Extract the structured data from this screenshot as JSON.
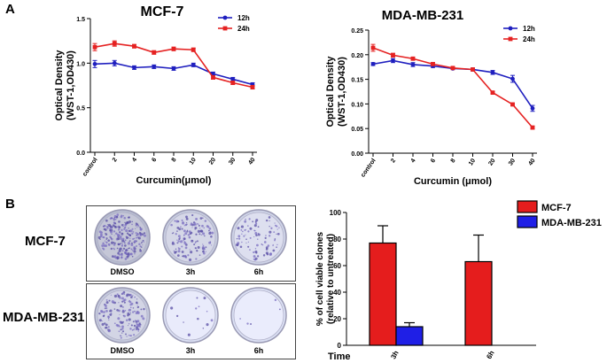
{
  "panels": {
    "a_label": "A",
    "b_label": "B"
  },
  "chart_data": [
    {
      "type": "line",
      "title": "MCF-7",
      "xlabel": "Curcumin(μmol)",
      "ylabel": [
        "Optical Density",
        "(WST-1,OD430)"
      ],
      "categories": [
        "control",
        "2",
        "4",
        "6",
        "8",
        "10",
        "20",
        "30",
        "40"
      ],
      "ylim": [
        0,
        1.5
      ],
      "yticks": [
        "0.0",
        "0.5",
        "1.0",
        "1.5"
      ],
      "ytick_values": [
        0,
        0.5,
        1.0,
        1.5
      ],
      "legend_position": "top-right",
      "series": [
        {
          "name": "12h",
          "color": "#1f1fbf",
          "values": [
            0.99,
            1.0,
            0.95,
            0.96,
            0.94,
            0.98,
            0.88,
            0.82,
            0.76
          ],
          "errors": [
            0.04,
            0.03,
            0.02,
            0.02,
            0.02,
            0.02,
            0.02,
            0.02,
            0.02
          ]
        },
        {
          "name": "24h",
          "color": "#e52222",
          "values": [
            1.18,
            1.22,
            1.19,
            1.12,
            1.16,
            1.15,
            0.84,
            0.78,
            0.73
          ],
          "errors": [
            0.04,
            0.03,
            0.02,
            0.02,
            0.02,
            0.02,
            0.02,
            0.02,
            0.02
          ]
        }
      ]
    },
    {
      "type": "line",
      "title": "MDA-MB-231",
      "xlabel": "Curcumin (μmol)",
      "ylabel": [
        "Optical Density",
        "(WST-1,OD430)"
      ],
      "categories": [
        "control",
        "2",
        "4",
        "6",
        "8",
        "10",
        "20",
        "30",
        "40"
      ],
      "ylim": [
        0,
        0.25
      ],
      "yticks": [
        "0.00",
        "0.05",
        "0.10",
        "0.15",
        "0.20",
        "0.25"
      ],
      "ytick_values": [
        0,
        0.05,
        0.1,
        0.15,
        0.2,
        0.25
      ],
      "legend_position": "top-right",
      "series": [
        {
          "name": "12h",
          "color": "#1f1fbf",
          "values": [
            0.181,
            0.188,
            0.18,
            0.177,
            0.172,
            0.17,
            0.164,
            0.151,
            0.091
          ],
          "errors": [
            0.003,
            0.004,
            0.004,
            0.003,
            0.002,
            0.003,
            0.004,
            0.007,
            0.006
          ]
        },
        {
          "name": "24h",
          "color": "#e52222",
          "values": [
            0.214,
            0.199,
            0.192,
            0.181,
            0.173,
            0.17,
            0.123,
            0.099,
            0.052
          ],
          "errors": [
            0.007,
            0.004,
            0.003,
            0.003,
            0.002,
            0.002,
            0.002,
            0.002,
            0.003
          ]
        }
      ]
    },
    {
      "type": "bar",
      "title": "",
      "xlabel": "Time",
      "ylabel": [
        "% of cell viable clones",
        "(relative to untreated)"
      ],
      "categories": [
        "3h",
        "6h"
      ],
      "ylim": [
        0,
        100
      ],
      "yticks": [
        "0",
        "20",
        "40",
        "60",
        "80",
        "100"
      ],
      "ytick_values": [
        0,
        20,
        40,
        60,
        80,
        100
      ],
      "legend_position": "top-right",
      "series": [
        {
          "name": "MCF-7",
          "color": "#e51d1d",
          "values": [
            77,
            63
          ],
          "errors": [
            13,
            20
          ]
        },
        {
          "name": "MDA-MB-231",
          "color": "#1f1fe6",
          "values": [
            14,
            0
          ],
          "errors": [
            3,
            0
          ]
        }
      ]
    }
  ],
  "plates": {
    "rows": [
      {
        "label": "MCF-7",
        "dishes": [
          {
            "label": "DMSO",
            "density": 0.95
          },
          {
            "label": "3h",
            "density": 0.55
          },
          {
            "label": "6h",
            "density": 0.35
          }
        ]
      },
      {
        "label": "MDA-MB-231",
        "dishes": [
          {
            "label": "DMSO",
            "density": 0.6
          },
          {
            "label": "3h",
            "density": 0.05
          },
          {
            "label": "6h",
            "density": 0.02
          }
        ]
      }
    ]
  }
}
